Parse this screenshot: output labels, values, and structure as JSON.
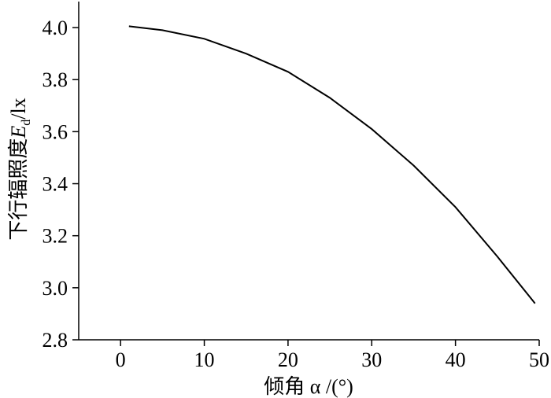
{
  "chart_data": {
    "type": "line",
    "x_label": "倾角 α /(°)",
    "y_label": {
      "prefix": "下行辐照度",
      "symbol": "E",
      "subscript": "d",
      "unit": "/lx"
    },
    "x": [
      1,
      5,
      10,
      15,
      20,
      25,
      30,
      35,
      40,
      45,
      49.5
    ],
    "series": [
      {
        "color": "#000000",
        "values": [
          4.005,
          3.99,
          3.957,
          3.9,
          3.83,
          3.73,
          3.61,
          3.47,
          3.31,
          3.12,
          2.94
        ]
      }
    ],
    "xlim": [
      -5,
      50
    ],
    "xticks": [
      0,
      10,
      20,
      30,
      40,
      50
    ],
    "ylim": [
      2.8,
      4.1
    ],
    "yticks": [
      2.8,
      3.2,
      3.4,
      3.6,
      3.8,
      {
        "value": 3.0,
        "label": "3.0"
      },
      {
        "value": 4.0,
        "label": "4.0"
      }
    ]
  }
}
